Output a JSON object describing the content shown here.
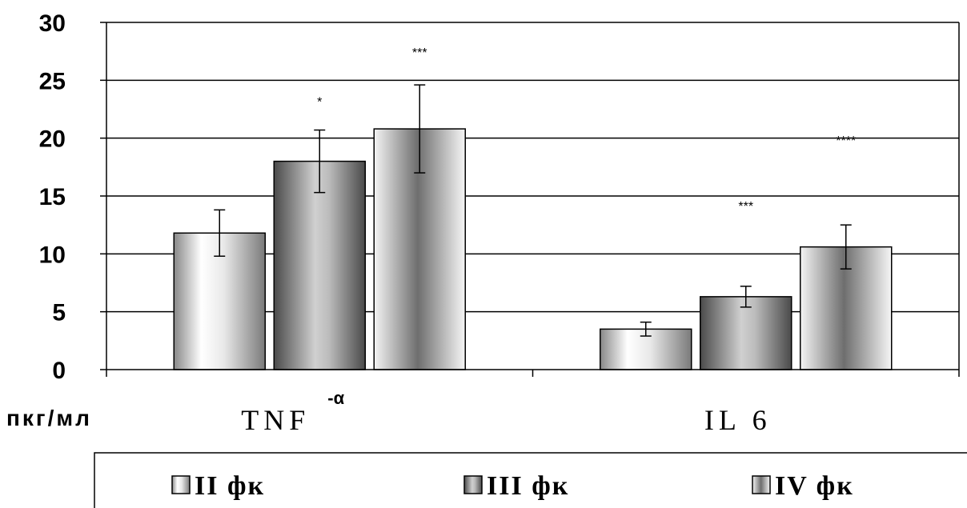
{
  "chart_data": {
    "type": "bar",
    "unit_label": "пкг/мл",
    "categories": [
      "TNF",
      "IL 6"
    ],
    "category_superscripts": [
      "-α",
      ""
    ],
    "yticks": [
      "0",
      "5",
      "10",
      "15",
      "20",
      "25",
      "30"
    ],
    "ylim": [
      0,
      30
    ],
    "grid": true,
    "legend_position": "bottom",
    "series": [
      {
        "name": "II фк",
        "values": [
          11.8,
          3.5
        ],
        "errors": [
          2.0,
          0.6
        ],
        "color": "#c8c8c8",
        "annotations": [
          "",
          ""
        ]
      },
      {
        "name": "III фк",
        "values": [
          18.0,
          6.3
        ],
        "errors": [
          2.7,
          0.9
        ],
        "color": "#8a8a8a",
        "annotations": [
          "*",
          "***"
        ]
      },
      {
        "name": "IV фк",
        "values": [
          20.8,
          10.6
        ],
        "errors": [
          3.8,
          1.9
        ],
        "color": "#d4d4d4",
        "annotations": [
          "***",
          "****"
        ]
      }
    ]
  }
}
